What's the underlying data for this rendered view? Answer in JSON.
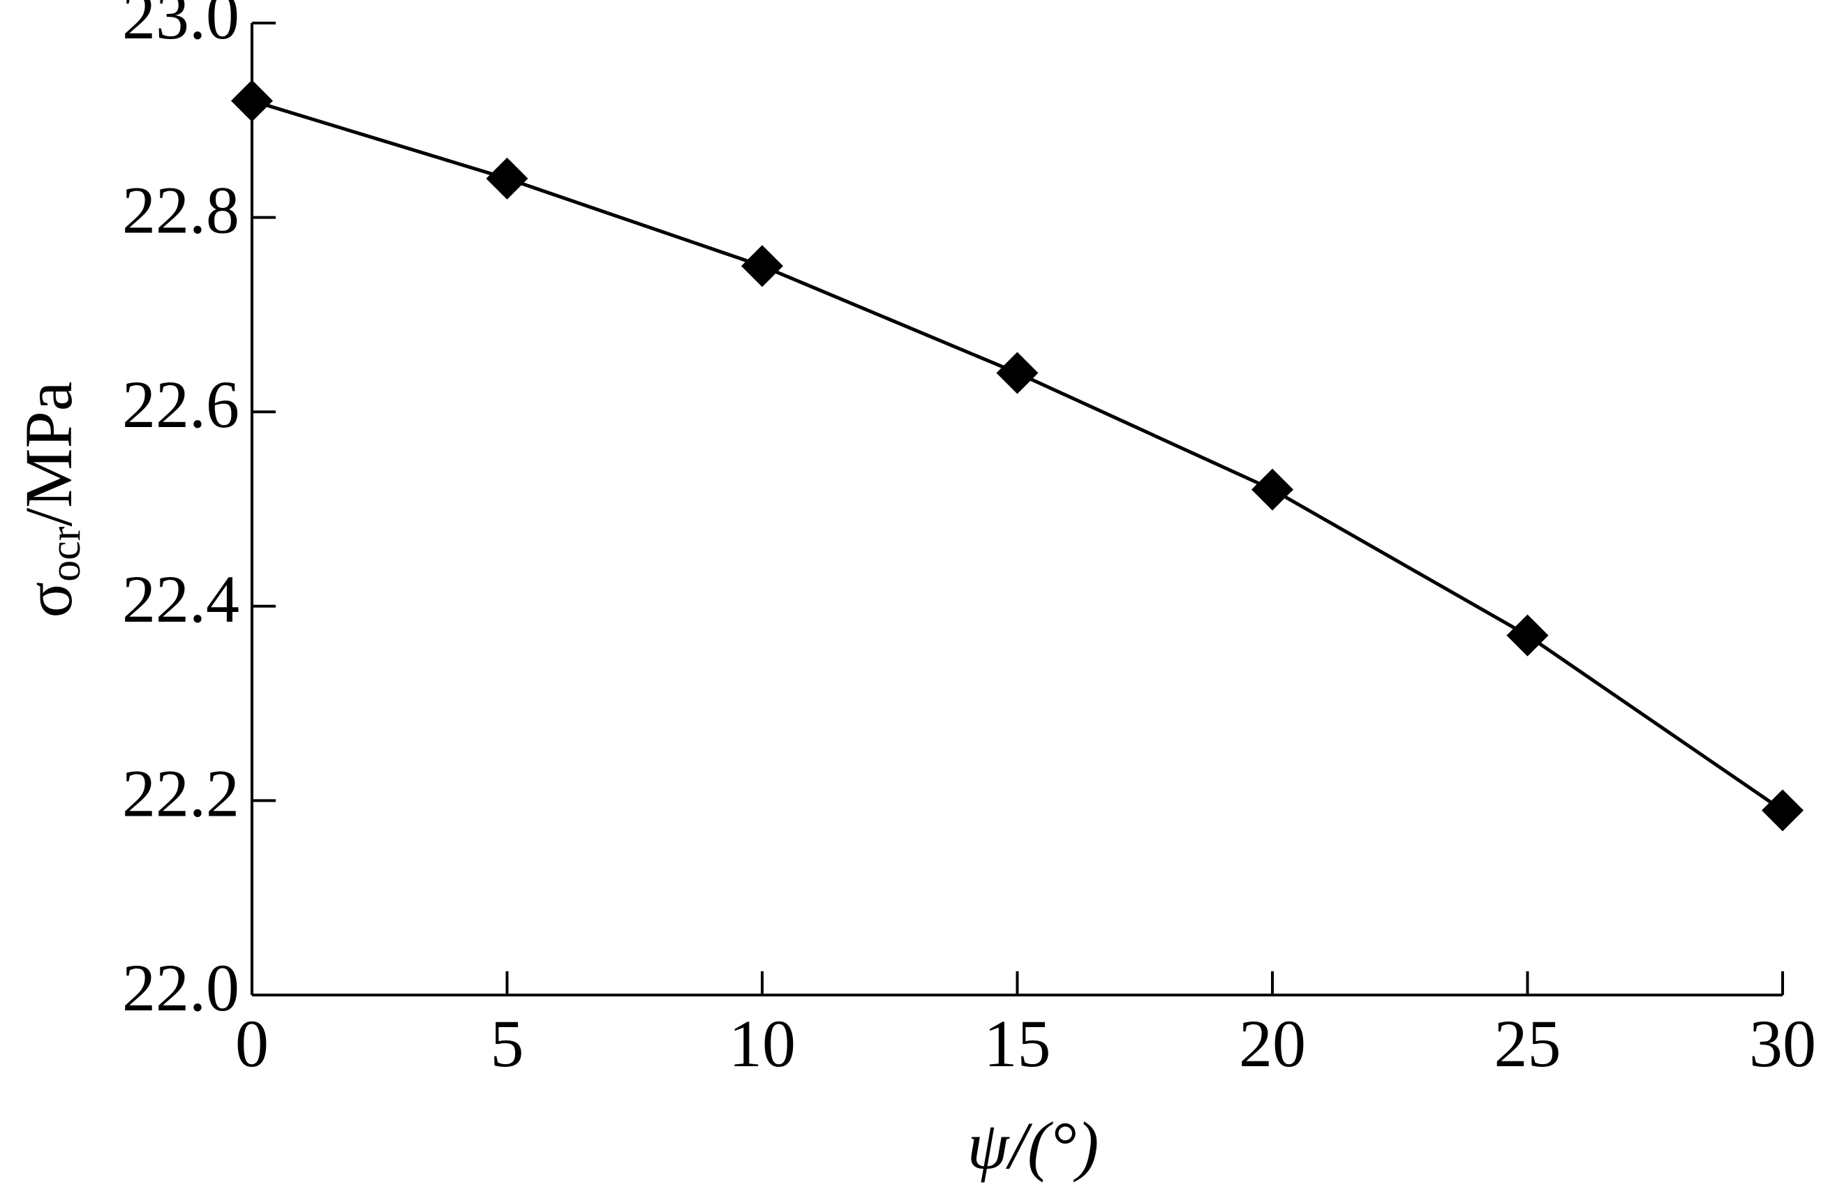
{
  "chart_data": {
    "type": "line",
    "x_label": "ψ/(°)",
    "y_label": {
      "symbol": "σ",
      "subscript": "ocr",
      "unit": "/MPa"
    },
    "x": [
      0,
      5,
      10,
      15,
      20,
      25,
      30
    ],
    "series": [
      {
        "color": "#000000",
        "values": [
          22.92,
          22.84,
          22.75,
          22.64,
          22.52,
          22.37,
          22.19
        ]
      }
    ],
    "xlim": [
      0,
      30
    ],
    "xticks": [
      0,
      5,
      10,
      15,
      20,
      25,
      30
    ],
    "ylim": [
      22,
      23
    ],
    "yticks": [
      {
        "value": 22,
        "label": "22.0"
      },
      22.2,
      22.4,
      22.6,
      22.8,
      {
        "value": 23,
        "label": "23.0"
      }
    ],
    "grid": false,
    "marker": "diamond"
  }
}
